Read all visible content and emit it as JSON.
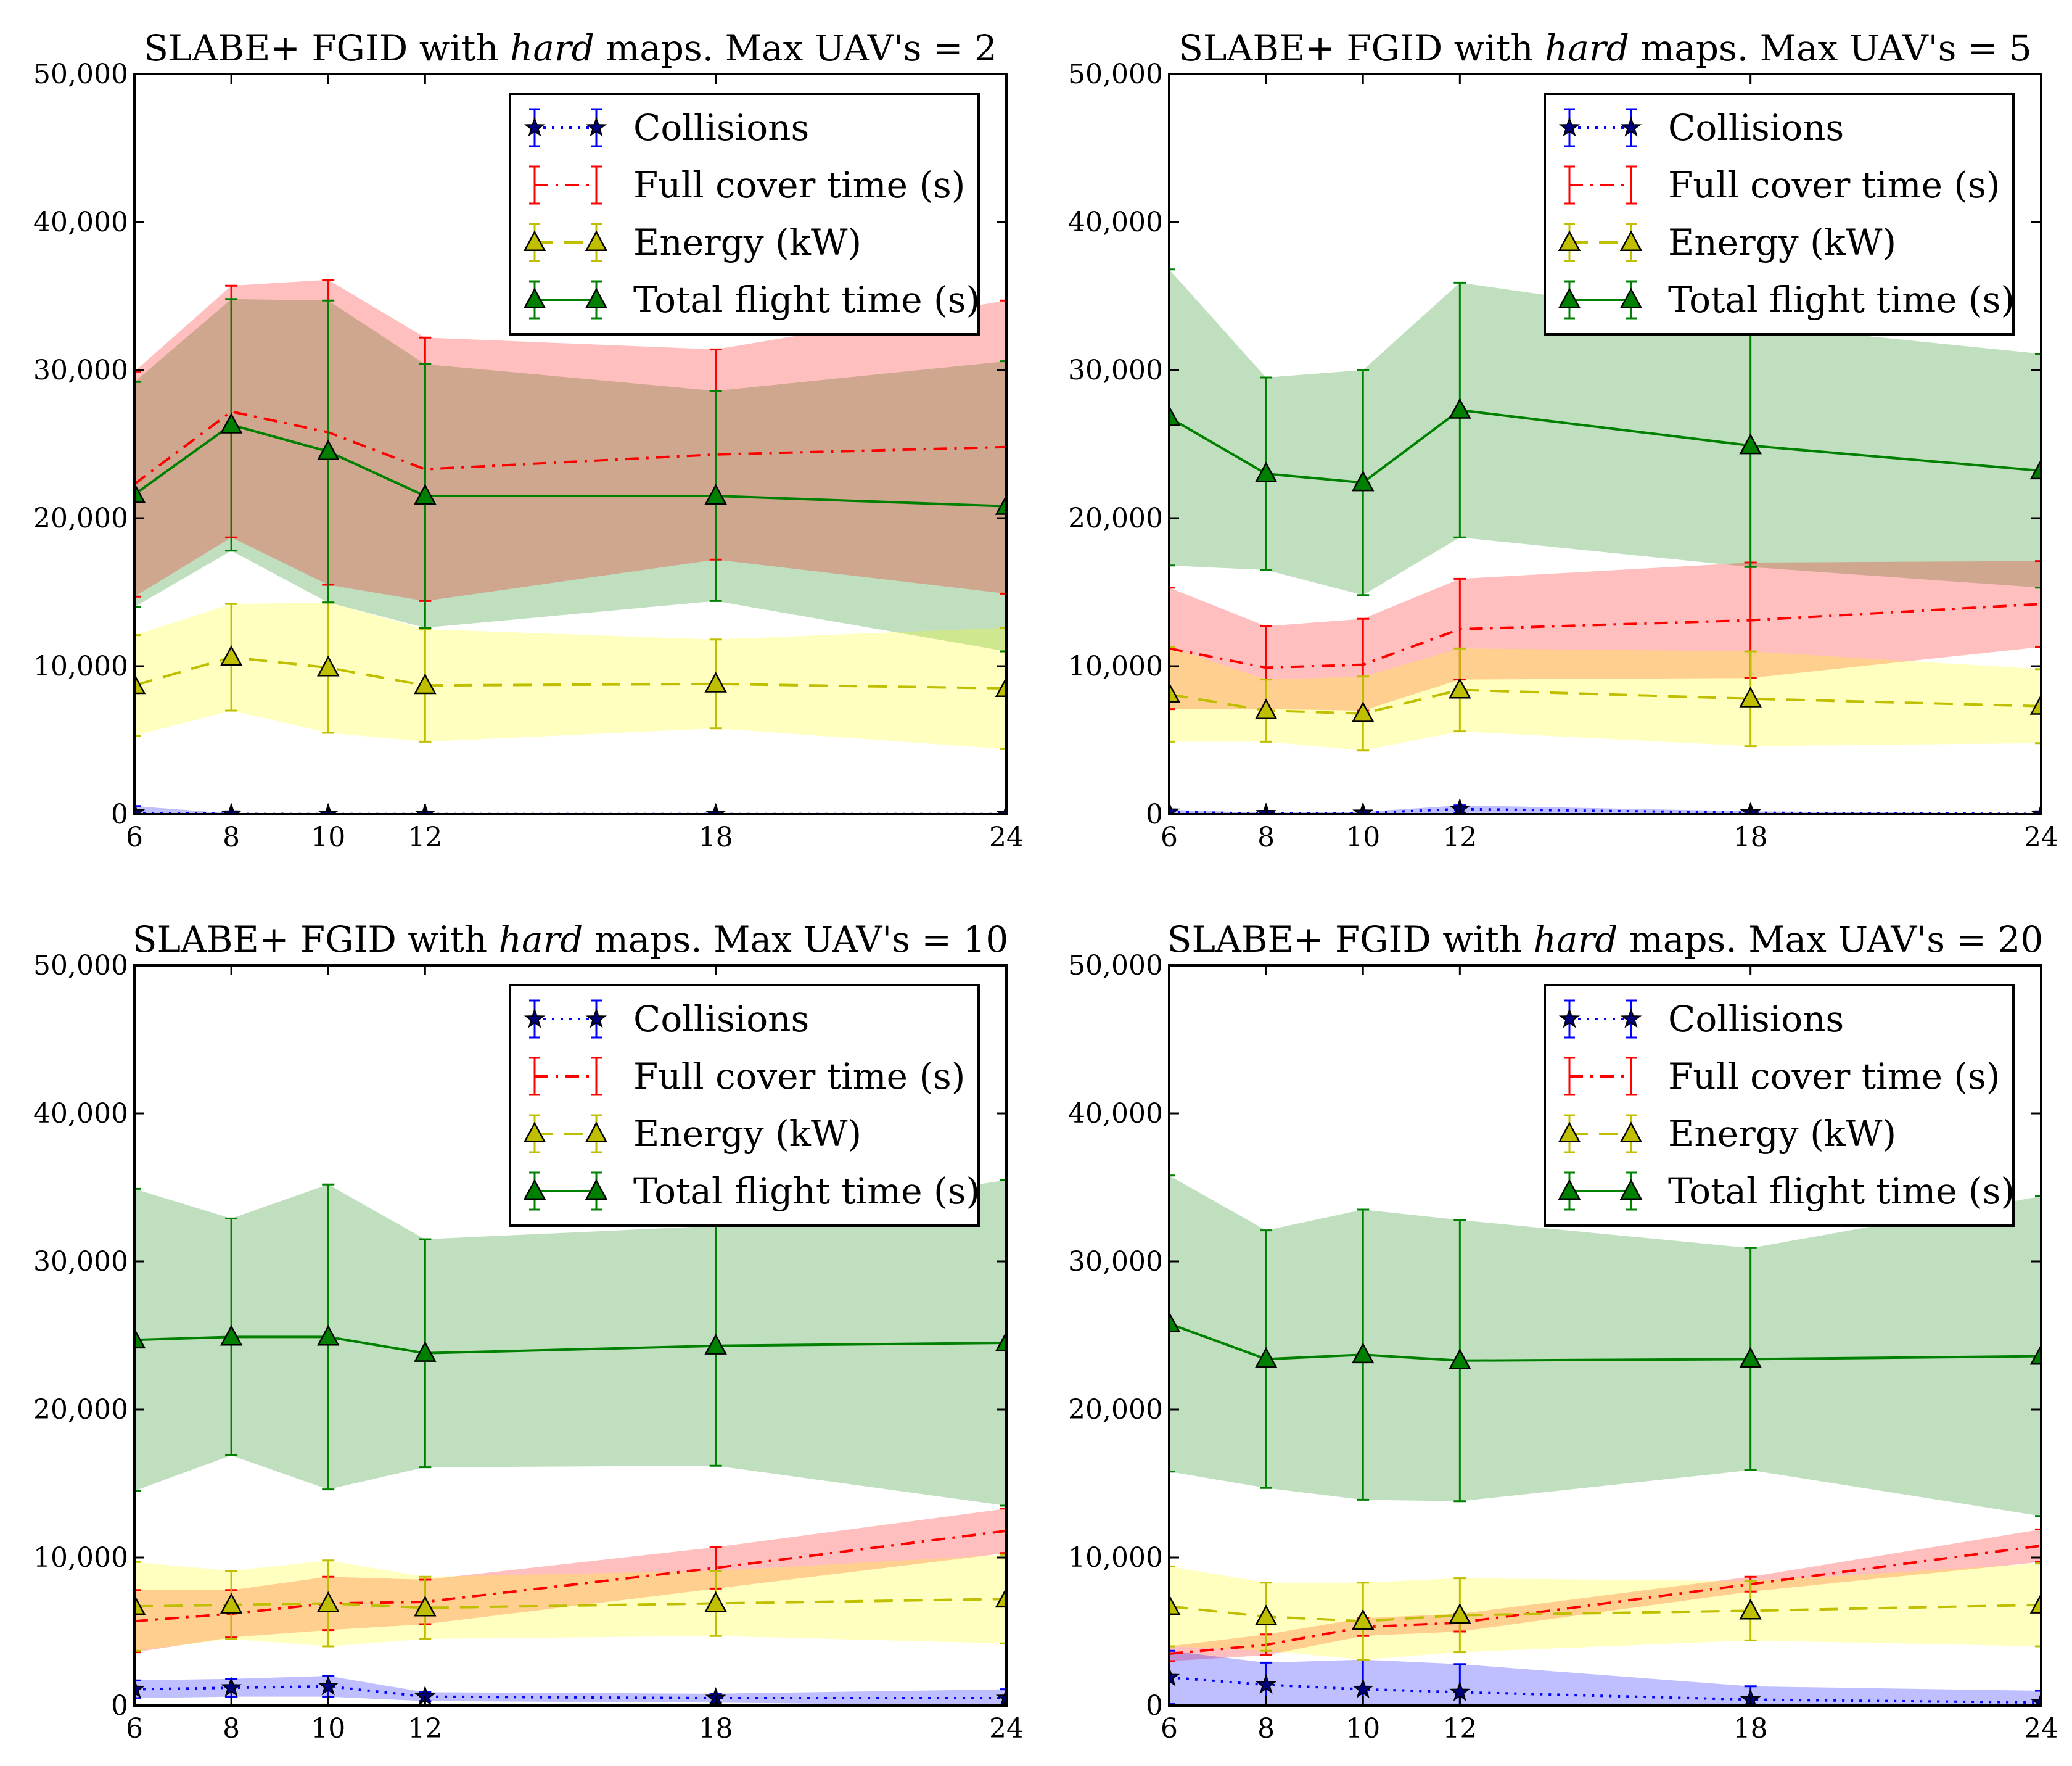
{
  "figure": {
    "layout": "2x2 grid of line charts with shaded error bands"
  },
  "series_styles": [
    {
      "key": "collisions",
      "name": "Collisions",
      "color": "#0000ff",
      "band": "#0000ff",
      "dash": "dotted",
      "marker": "star"
    },
    {
      "key": "cover",
      "name": "Full cover time (s)",
      "color": "#ff0000",
      "band": "#ff0000",
      "dash": "dashdot",
      "marker": "none"
    },
    {
      "key": "energy",
      "name": "Energy (kW)",
      "color": "#bfbf00",
      "band": "#ffff00",
      "dash": "dashed",
      "marker": "triangle"
    },
    {
      "key": "flight",
      "name": "Total flight time (s)",
      "color": "#008000",
      "band": "#008000",
      "dash": "solid",
      "marker": "triangle"
    }
  ],
  "chart_data": [
    {
      "type": "line",
      "title_prefix": "SLABE+ FGID with ",
      "title_emph": "hard",
      "title_suffix": " maps. Max UAV's = 2",
      "x": [
        6,
        8,
        10,
        12,
        18,
        24
      ],
      "x_tick_labels": [
        "6",
        "8",
        "10",
        "12",
        "18",
        "24"
      ],
      "xlim": [
        6,
        24
      ],
      "ylim": [
        0,
        50000
      ],
      "y_ticks": [
        0,
        10000,
        20000,
        30000,
        40000,
        50000
      ],
      "y_tick_labels": [
        "0",
        "10,000",
        "20,000",
        "30,000",
        "40,000",
        "50,000"
      ],
      "legend_position": "top-right",
      "series": [
        {
          "name": "Collisions",
          "values": [
            100,
            20,
            10,
            10,
            10,
            10
          ],
          "err": [
            450,
            30,
            20,
            20,
            20,
            20
          ]
        },
        {
          "name": "Full cover time (s)",
          "values": [
            22300,
            27200,
            25800,
            23300,
            24300,
            24800
          ],
          "err": [
            7600,
            8500,
            10300,
            8900,
            7100,
            9900
          ]
        },
        {
          "name": "Energy (kW)",
          "values": [
            8700,
            10600,
            9900,
            8700,
            8800,
            8500
          ],
          "err": [
            3400,
            3600,
            4400,
            3800,
            3000,
            4100
          ]
        },
        {
          "name": "Total flight time (s)",
          "values": [
            21600,
            26300,
            24500,
            21500,
            21500,
            20800
          ],
          "err": [
            7600,
            8500,
            10200,
            8900,
            7100,
            9800
          ]
        }
      ]
    },
    {
      "type": "line",
      "title_prefix": "SLABE+ FGID with ",
      "title_emph": "hard",
      "title_suffix": " maps. Max UAV's = 5",
      "x": [
        6,
        8,
        10,
        12,
        18,
        24
      ],
      "x_tick_labels": [
        "6",
        "8",
        "10",
        "12",
        "18",
        "24"
      ],
      "xlim": [
        6,
        24
      ],
      "ylim": [
        0,
        50000
      ],
      "y_ticks": [
        0,
        10000,
        20000,
        30000,
        40000,
        50000
      ],
      "y_tick_labels": [
        "0",
        "10,000",
        "20,000",
        "30,000",
        "40,000",
        "50,000"
      ],
      "legend_position": "top-right",
      "series": [
        {
          "name": "Collisions",
          "values": [
            150,
            50,
            80,
            350,
            100,
            20
          ],
          "err": [
            150,
            50,
            80,
            250,
            100,
            20
          ]
        },
        {
          "name": "Full cover time (s)",
          "values": [
            11200,
            9900,
            10100,
            12500,
            13100,
            14200
          ],
          "err": [
            4100,
            2800,
            3100,
            3400,
            3900,
            2900
          ]
        },
        {
          "name": "Energy (kW)",
          "values": [
            8100,
            7000,
            6800,
            8400,
            7800,
            7300
          ],
          "err": [
            3200,
            2100,
            2500,
            2800,
            3200,
            2500
          ]
        },
        {
          "name": "Total flight time (s)",
          "values": [
            26800,
            23000,
            22400,
            27300,
            24900,
            23200
          ],
          "err": [
            10000,
            6500,
            7600,
            8600,
            8200,
            7900
          ]
        }
      ]
    },
    {
      "type": "line",
      "title_prefix": "SLABE+ FGID with ",
      "title_emph": "hard",
      "title_suffix": " maps. Max UAV's = 10",
      "x": [
        6,
        8,
        10,
        12,
        18,
        24
      ],
      "x_tick_labels": [
        "6",
        "8",
        "10",
        "12",
        "18",
        "24"
      ],
      "xlim": [
        6,
        24
      ],
      "ylim": [
        0,
        50000
      ],
      "y_ticks": [
        0,
        10000,
        20000,
        30000,
        40000,
        50000
      ],
      "y_tick_labels": [
        "0",
        "10,000",
        "20,000",
        "30,000",
        "40,000",
        "50,000"
      ],
      "legend_position": "top-right",
      "series": [
        {
          "name": "Collisions",
          "values": [
            1100,
            1200,
            1300,
            600,
            500,
            500
          ],
          "err": [
            600,
            600,
            700,
            300,
            300,
            600
          ]
        },
        {
          "name": "Full cover time (s)",
          "values": [
            5700,
            6200,
            6900,
            7000,
            9300,
            11800
          ],
          "err": [
            2100,
            1600,
            1800,
            1500,
            1400,
            1500
          ]
        },
        {
          "name": "Energy (kW)",
          "values": [
            6700,
            6800,
            6900,
            6600,
            6900,
            7200
          ],
          "err": [
            3000,
            2300,
            2900,
            2100,
            2200,
            3000
          ]
        },
        {
          "name": "Total flight time (s)",
          "values": [
            24700,
            24900,
            24900,
            23800,
            24300,
            24500
          ],
          "err": [
            10200,
            8000,
            10300,
            7700,
            8100,
            11000
          ]
        }
      ]
    },
    {
      "type": "line",
      "title_prefix": "SLABE+ FGID with ",
      "title_emph": "hard",
      "title_suffix": " maps. Max UAV's = 20",
      "x": [
        6,
        8,
        10,
        12,
        18,
        24
      ],
      "x_tick_labels": [
        "6",
        "8",
        "10",
        "12",
        "18",
        "24"
      ],
      "xlim": [
        6,
        24
      ],
      "ylim": [
        0,
        50000
      ],
      "y_ticks": [
        0,
        10000,
        20000,
        30000,
        40000,
        50000
      ],
      "y_tick_labels": [
        "0",
        "10,000",
        "20,000",
        "30,000",
        "40,000",
        "50,000"
      ],
      "legend_position": "top-right",
      "series": [
        {
          "name": "Collisions",
          "values": [
            1900,
            1400,
            1100,
            900,
            400,
            200
          ],
          "err": [
            1800,
            1500,
            2000,
            1900,
            900,
            800
          ]
        },
        {
          "name": "Full cover time (s)",
          "values": [
            3500,
            4100,
            5300,
            5600,
            8200,
            10800
          ],
          "err": [
            500,
            700,
            600,
            600,
            500,
            1100
          ]
        },
        {
          "name": "Energy (kW)",
          "values": [
            6700,
            6000,
            5700,
            6100,
            6400,
            6800
          ],
          "err": [
            2700,
            2300,
            2600,
            2500,
            2000,
            2800
          ]
        },
        {
          "name": "Total flight time (s)",
          "values": [
            25800,
            23400,
            23700,
            23300,
            23400,
            23600
          ],
          "err": [
            10000,
            8700,
            9800,
            9500,
            7500,
            10800
          ]
        }
      ]
    }
  ]
}
